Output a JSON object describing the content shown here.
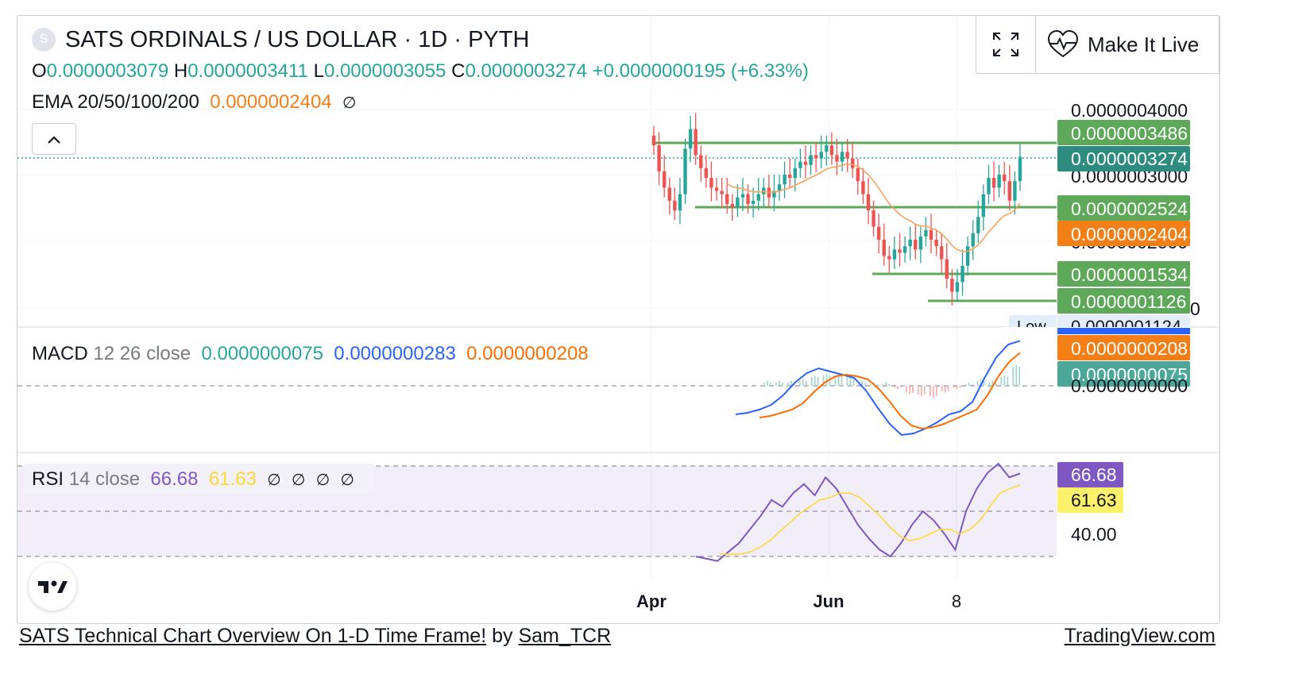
{
  "header": {
    "symbol_badge": "S",
    "title": "SATS ORDINALS / US DOLLAR · 1D · PYTH",
    "ohlc": {
      "o_label": "O",
      "o": "0.0000003079",
      "h_label": "H",
      "h": "0.0000003411",
      "l_label": "L",
      "l": "0.0000003055",
      "c_label": "C",
      "c": "0.0000003274",
      "change": "+0.0000000195 (+6.33%)"
    },
    "ema": {
      "label": "EMA 20/50/100/200",
      "value": "0.0000002404",
      "empty_symbol": "∅"
    }
  },
  "buttons": {
    "make_live": "Make It Live"
  },
  "macd_legend": {
    "label": "MACD",
    "params": "12 26 close",
    "hist": "0.0000000075",
    "macd": "0.0000000283",
    "signal": "0.0000000208"
  },
  "rsi_legend": {
    "label": "RSI",
    "params": "14 close",
    "rsi": "66.68",
    "ma": "61.63",
    "empties": [
      "∅",
      "∅",
      "∅",
      "∅"
    ]
  },
  "footer": {
    "idea_title": "SATS Technical Chart Overview On 1-D Time Frame!",
    "by": "by",
    "author": "Sam_TCR",
    "site": "TradingView.com"
  },
  "colors": {
    "up": "#26a69a",
    "down": "#ef5350",
    "level_line": "#5ea85a",
    "ema": "#f7a35c",
    "macd": "#2962ff",
    "signal": "#ff6d00",
    "rsi": "#7e57c2",
    "rsi_ma": "#fdd835"
  },
  "chart_data": [
    {
      "type": "candlestick",
      "title": "SATS ORDINALS / US DOLLAR · 1D · PYTH",
      "x_ticks": [
        "Apr",
        "Jun",
        "8"
      ],
      "price_axis_labels": [
        "0.0000004000",
        "0.0000003000"
      ],
      "levels": [
        "0.0000003486",
        "0.0000002524",
        "0.0000001534",
        "0.0000001126"
      ],
      "last_price": "0.0000003274",
      "ema_value": "0.0000002404",
      "low_label": "Low",
      "low_value": "0.0000001124",
      "ylim": [
        1e-07,
        4e-07
      ],
      "close_series": [
        3.45,
        3.05,
        2.8,
        2.6,
        2.45,
        2.7,
        3.4,
        3.7,
        3.3,
        3.1,
        2.95,
        2.8,
        2.75,
        2.7,
        2.55,
        2.5,
        2.65,
        2.7,
        2.55,
        2.6,
        2.7,
        2.8,
        2.65,
        2.75,
        2.85,
        3.0,
        2.95,
        3.1,
        3.2,
        3.15,
        3.3,
        3.25,
        3.35,
        3.45,
        3.3,
        3.2,
        3.35,
        3.25,
        3.1,
        2.9,
        2.7,
        2.45,
        2.2,
        2.0,
        1.75,
        1.7,
        1.85,
        1.8,
        1.9,
        2.0,
        1.85,
        2.05,
        2.15,
        2.0,
        1.9,
        1.7,
        1.4,
        1.2,
        1.35,
        1.6,
        1.9,
        2.1,
        2.35,
        2.7,
        2.95,
        2.8,
        3.0,
        2.9,
        2.6,
        2.9,
        3.274
      ],
      "close_units": "1e-7 USD"
    },
    {
      "type": "macd",
      "axis_labels": [
        "0.0000000283",
        "0.0000000208",
        "0.0000000075",
        "0.0000000000"
      ],
      "macd": [
        -1.8,
        -1.7,
        -1.5,
        -1.2,
        -0.6,
        0.2,
        0.8,
        1.1,
        0.9,
        0.7,
        0.5,
        -0.3,
        -1.4,
        -2.4,
        -3.1,
        -3.0,
        -2.7,
        -2.3,
        -1.8,
        -1.6,
        -1.0,
        0.5,
        1.8,
        2.6,
        2.83
      ],
      "signal": [
        -2.0,
        -1.9,
        -1.7,
        -1.5,
        -1.1,
        -0.4,
        0.2,
        0.6,
        0.7,
        0.6,
        0.4,
        -0.2,
        -1.0,
        -1.9,
        -2.5,
        -2.7,
        -2.6,
        -2.4,
        -2.1,
        -1.8,
        -1.5,
        -0.6,
        0.6,
        1.5,
        2.08
      ],
      "units": "1e-8"
    },
    {
      "type": "rsi",
      "axis_labels": [
        "66.68",
        "61.63",
        "40.00"
      ],
      "bands": [
        70,
        50,
        30
      ],
      "ylim": [
        20,
        80
      ],
      "rsi": [
        30,
        29,
        28,
        32,
        36,
        42,
        48,
        55,
        52,
        58,
        62,
        57,
        65,
        60,
        52,
        44,
        38,
        33,
        30,
        36,
        44,
        50,
        46,
        40,
        33,
        50,
        60,
        67,
        71,
        65,
        66.68
      ],
      "rsi_ma": [
        31,
        31,
        31,
        32,
        34,
        37,
        41,
        45,
        49,
        52,
        55,
        56,
        58,
        58,
        56,
        52,
        48,
        43,
        39,
        37,
        38,
        40,
        42,
        42,
        40,
        42,
        46,
        52,
        58,
        60,
        61.63
      ]
    }
  ]
}
